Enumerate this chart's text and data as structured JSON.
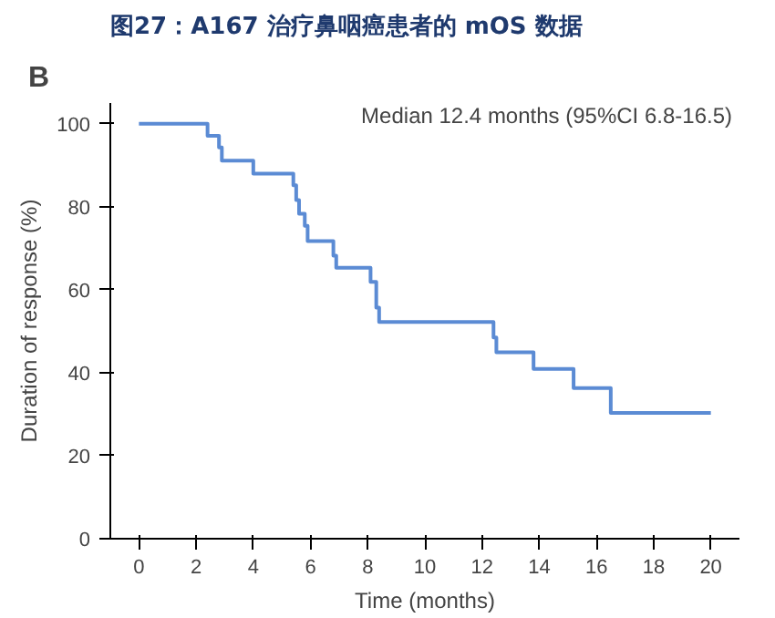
{
  "chart_data": {
    "type": "step",
    "title": "图27：A167 治疗鼻咽癌患者的 mOS 数据",
    "xlabel": "Time (months)",
    "ylabel": "Duration of response (%)",
    "annotations": [
      "B",
      "Median 12.4 months (95%CI 6.8-16.5)"
    ],
    "x": [
      0,
      2.4,
      2.8,
      2.9,
      4.0,
      5.4,
      5.5,
      5.6,
      5.8,
      5.9,
      6.8,
      6.9,
      8.1,
      8.3,
      8.4,
      12.4,
      12.5,
      13.8,
      15.2,
      16.5,
      20
    ],
    "series": [
      {
        "color": "#5b8bd4",
        "values": [
          100,
          97.1,
          94.3,
          91.1,
          88,
          85.2,
          81.6,
          78.3,
          75.4,
          71.7,
          68.2,
          65.3,
          61.9,
          55.7,
          52.2,
          48.5,
          44.9,
          40.9,
          36.3,
          30.3,
          30.3
        ]
      }
    ],
    "xlim": [
      -1,
      21
    ],
    "ylim": [
      0,
      105
    ],
    "xticks": [
      0,
      2,
      4,
      6,
      8,
      10,
      12,
      14,
      16,
      18,
      20
    ],
    "yticks": [
      0,
      20,
      40,
      60,
      80,
      100
    ],
    "grid": false,
    "line_style": "solid"
  }
}
